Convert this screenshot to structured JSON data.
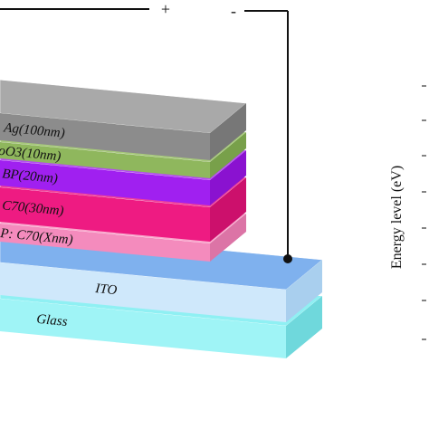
{
  "circuit": {
    "positive": "+",
    "negative": "-"
  },
  "layers": [
    {
      "label": "Ag(100nm)"
    },
    {
      "label": "oO3(10nm)"
    },
    {
      "label": "BP(20nm)"
    },
    {
      "label": "C70(30nm)"
    },
    {
      "label": "P: C70(Xnm)"
    },
    {
      "label": "ITO"
    },
    {
      "label": "Glass"
    }
  ],
  "axis_label": "Energy level (eV)"
}
